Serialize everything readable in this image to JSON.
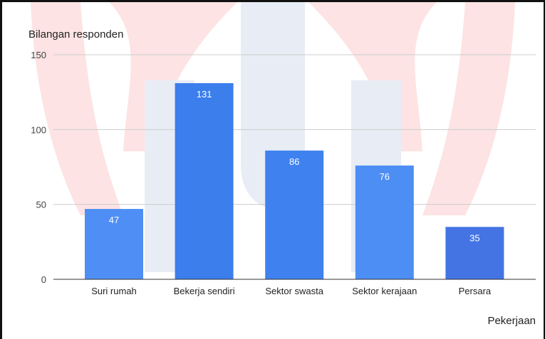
{
  "chart_data": {
    "type": "bar",
    "ylabel": "Bilangan responden",
    "xlabel": "Pekerjaan",
    "categories": [
      "Suri rumah",
      "Bekerja sendiri",
      "Sektor swasta",
      "Sektor kerajaan",
      "Persara"
    ],
    "values": [
      47,
      131,
      86,
      76,
      35
    ],
    "ylim": [
      0,
      150
    ],
    "yticks": [
      0,
      50,
      100,
      150
    ],
    "grid": true,
    "data_labels": true,
    "bar_colors": [
      "#4f8ff5",
      "#3b7eec",
      "#3f82ef",
      "#4d8ef4",
      "#4474e4"
    ]
  },
  "watermark": {
    "colors": [
      "#fde3e3",
      "#e8edf5"
    ]
  }
}
